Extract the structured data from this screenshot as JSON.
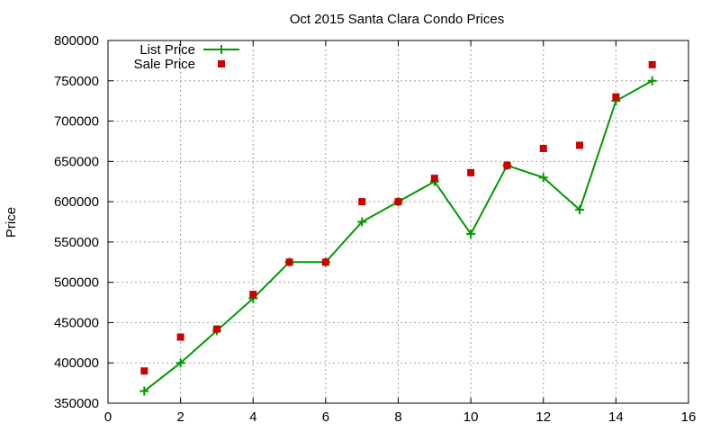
{
  "chart_data": {
    "type": "line",
    "title": "Oct 2015 Santa Clara Condo Prices",
    "xlabel": "",
    "ylabel": "Price",
    "xlim": [
      0,
      16
    ],
    "ylim": [
      350000,
      800000
    ],
    "x_ticks": [
      "0",
      "2",
      "4",
      "6",
      "8",
      "10",
      "12",
      "14",
      "16"
    ],
    "y_ticks": [
      "350000",
      "400000",
      "450000",
      "500000",
      "550000",
      "600000",
      "650000",
      "700000",
      "750000",
      "800000"
    ],
    "grid": true,
    "legend_position": "top-left",
    "series": [
      {
        "name": "List Price",
        "style": "line-with-plus-markers",
        "color": "#009900",
        "x": [
          1,
          2,
          3,
          4,
          5,
          6,
          7,
          8,
          9,
          10,
          11,
          12,
          13,
          14,
          15
        ],
        "values": [
          365000,
          400000,
          440000,
          480000,
          525000,
          525000,
          575000,
          600000,
          625000,
          560000,
          645000,
          630000,
          590000,
          725000,
          750000
        ]
      },
      {
        "name": "Sale Price",
        "style": "square-markers",
        "color": "#cc0000",
        "x": [
          1,
          2,
          3,
          4,
          5,
          6,
          7,
          8,
          9,
          10,
          11,
          12,
          13,
          14,
          15
        ],
        "values": [
          390000,
          432000,
          442000,
          485000,
          525000,
          525000,
          600000,
          600000,
          629000,
          636000,
          645000,
          666000,
          670000,
          730000,
          770000
        ]
      }
    ]
  }
}
